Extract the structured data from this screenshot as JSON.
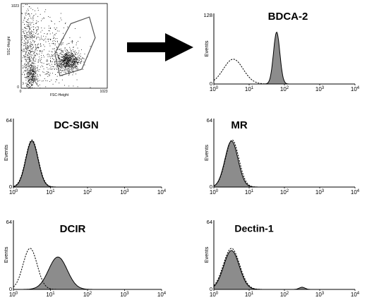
{
  "scatter": {
    "x_label": "FSC-Height",
    "y_label": "SSC-Height",
    "x_ticks": [
      "0",
      "1023"
    ],
    "y_ticks": [
      "1023",
      "0"
    ]
  },
  "hist_axis": {
    "y_label": "Events",
    "x_ticks": [
      {
        "base": "10",
        "exp": "0"
      },
      {
        "base": "10",
        "exp": "1"
      },
      {
        "base": "10",
        "exp": "2"
      },
      {
        "base": "10",
        "exp": "3"
      },
      {
        "base": "10",
        "exp": "4"
      }
    ]
  },
  "chart_data": [
    {
      "type": "scatter",
      "xlabel": "FSC-Height",
      "ylabel": "SSC-Height",
      "xlim": [
        0,
        1023
      ],
      "ylim": [
        0,
        1023
      ],
      "clusters": [
        {
          "cx": 120,
          "cy": 150,
          "sx": 40,
          "sy": 90,
          "n": 260
        },
        {
          "cx": 560,
          "cy": 330,
          "sx": 70,
          "sy": 60,
          "n": 650
        },
        {
          "cx": 90,
          "cy": 520,
          "sx": 55,
          "sy": 300,
          "n": 420
        },
        {
          "cx": 320,
          "cy": 420,
          "sx": 170,
          "sy": 220,
          "n": 420
        }
      ],
      "gate": [
        [
          460,
          150
        ],
        [
          720,
          230
        ],
        [
          880,
          610
        ],
        [
          810,
          860
        ],
        [
          590,
          780
        ],
        [
          400,
          420
        ]
      ]
    },
    {
      "type": "area",
      "title": "BDCA-2",
      "ylabel": "Events",
      "ylim": [
        0,
        128
      ],
      "y_ticks": [
        "128",
        "0"
      ],
      "xscale": "log",
      "xlim": [
        1,
        10000
      ],
      "series": [
        {
          "style": "dashed-outline",
          "peaks": [
            {
              "center_log": 0.55,
              "width_log": 0.28,
              "height": 45
            }
          ]
        },
        {
          "style": "filled",
          "peaks": [
            {
              "center_log": 1.78,
              "width_log": 0.09,
              "height": 94
            }
          ]
        }
      ]
    },
    {
      "type": "area",
      "title": "DC-SIGN",
      "ylabel": "Events",
      "ylim": [
        0,
        64
      ],
      "y_ticks": [
        "64",
        "0"
      ],
      "xscale": "log",
      "xlim": [
        1,
        10000
      ],
      "series": [
        {
          "style": "dashed-outline",
          "peaks": [
            {
              "center_log": 0.5,
              "width_log": 0.17,
              "height": 44
            }
          ]
        },
        {
          "style": "filled",
          "peaks": [
            {
              "center_log": 0.5,
              "width_log": 0.165,
              "height": 43
            }
          ]
        }
      ]
    },
    {
      "type": "area",
      "title": "MR",
      "ylabel": "Events",
      "ylim": [
        0,
        64
      ],
      "y_ticks": [
        "64",
        "0"
      ],
      "xscale": "log",
      "xlim": [
        1,
        10000
      ],
      "series": [
        {
          "style": "dashed-outline",
          "peaks": [
            {
              "center_log": 0.52,
              "width_log": 0.19,
              "height": 44
            }
          ]
        },
        {
          "style": "filled",
          "peaks": [
            {
              "center_log": 0.5,
              "width_log": 0.185,
              "height": 43
            }
          ]
        }
      ]
    },
    {
      "type": "area",
      "title": "DCIR",
      "ylabel": "Events",
      "ylim": [
        0,
        64
      ],
      "y_ticks": [
        "64",
        "0"
      ],
      "xscale": "log",
      "xlim": [
        1,
        10000
      ],
      "series": [
        {
          "style": "dashed-outline",
          "peaks": [
            {
              "center_log": 0.45,
              "width_log": 0.19,
              "height": 38
            }
          ]
        },
        {
          "style": "filled",
          "peaks": [
            {
              "center_log": 1.2,
              "width_log": 0.25,
              "height": 30
            }
          ]
        }
      ]
    },
    {
      "type": "area",
      "title": "Dectin-1",
      "ylabel": "Events",
      "ylim": [
        0,
        64
      ],
      "y_ticks": [
        "64",
        "0"
      ],
      "xscale": "log",
      "xlim": [
        1,
        10000
      ],
      "series": [
        {
          "style": "dashed-outline",
          "peaks": [
            {
              "center_log": 0.5,
              "width_log": 0.23,
              "height": 38
            }
          ]
        },
        {
          "style": "filled",
          "peaks": [
            {
              "center_log": 0.5,
              "width_log": 0.22,
              "height": 36
            },
            {
              "center_log": 2.5,
              "width_log": 0.08,
              "height": 2
            }
          ]
        }
      ]
    }
  ]
}
